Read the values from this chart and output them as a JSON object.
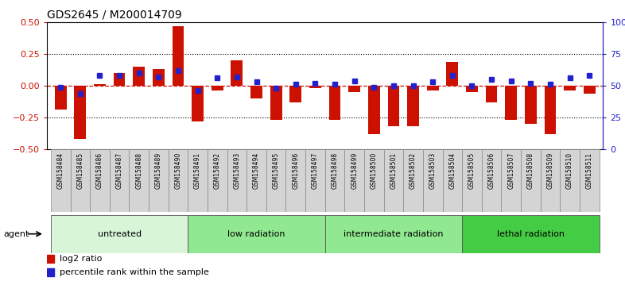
{
  "title": "GDS2645 / M200014709",
  "samples": [
    "GSM158484",
    "GSM158485",
    "GSM158486",
    "GSM158487",
    "GSM158488",
    "GSM158489",
    "GSM158490",
    "GSM158491",
    "GSM158492",
    "GSM158493",
    "GSM158494",
    "GSM158495",
    "GSM158496",
    "GSM158497",
    "GSM158498",
    "GSM158499",
    "GSM158500",
    "GSM158501",
    "GSM158502",
    "GSM158503",
    "GSM158504",
    "GSM158505",
    "GSM158506",
    "GSM158507",
    "GSM158508",
    "GSM158509",
    "GSM158510",
    "GSM158511"
  ],
  "log2_ratio": [
    -0.19,
    -0.42,
    0.01,
    0.1,
    0.15,
    0.13,
    0.47,
    -0.28,
    -0.04,
    0.2,
    -0.1,
    -0.27,
    -0.13,
    -0.02,
    -0.27,
    -0.05,
    -0.38,
    -0.32,
    -0.32,
    -0.04,
    0.19,
    -0.05,
    -0.13,
    -0.27,
    -0.3,
    -0.38,
    -0.04,
    -0.06
  ],
  "percentile": [
    49,
    44,
    58,
    58,
    60,
    57,
    62,
    46,
    56,
    57,
    53,
    48,
    51,
    52,
    51,
    54,
    49,
    50,
    50,
    53,
    58,
    50,
    55,
    54,
    52,
    51,
    56,
    58
  ],
  "groups": [
    {
      "label": "untreated",
      "start": 0,
      "end": 7,
      "color": "#d8f5d8"
    },
    {
      "label": "low radiation",
      "start": 7,
      "end": 14,
      "color": "#90e890"
    },
    {
      "label": "intermediate radiation",
      "start": 14,
      "end": 21,
      "color": "#90e890"
    },
    {
      "label": "lethal radiation",
      "start": 21,
      "end": 28,
      "color": "#44cc44"
    }
  ],
  "bar_color": "#cc1100",
  "dot_color": "#2222cc",
  "ylim_left": [
    -0.5,
    0.5
  ],
  "yticks_left": [
    -0.5,
    -0.25,
    0.0,
    0.25,
    0.5
  ],
  "ylim_right": [
    0,
    100
  ],
  "yticks_right": [
    0,
    25,
    50,
    75,
    100
  ],
  "hline_color": "#cc1100",
  "dot_color_blue": "#2222cc",
  "background_color": "#ffffff",
  "tick_bg_color": "#d0d0d0",
  "agent_label": "agent",
  "legend_log2": "log2 ratio",
  "legend_pct": "percentile rank within the sample"
}
